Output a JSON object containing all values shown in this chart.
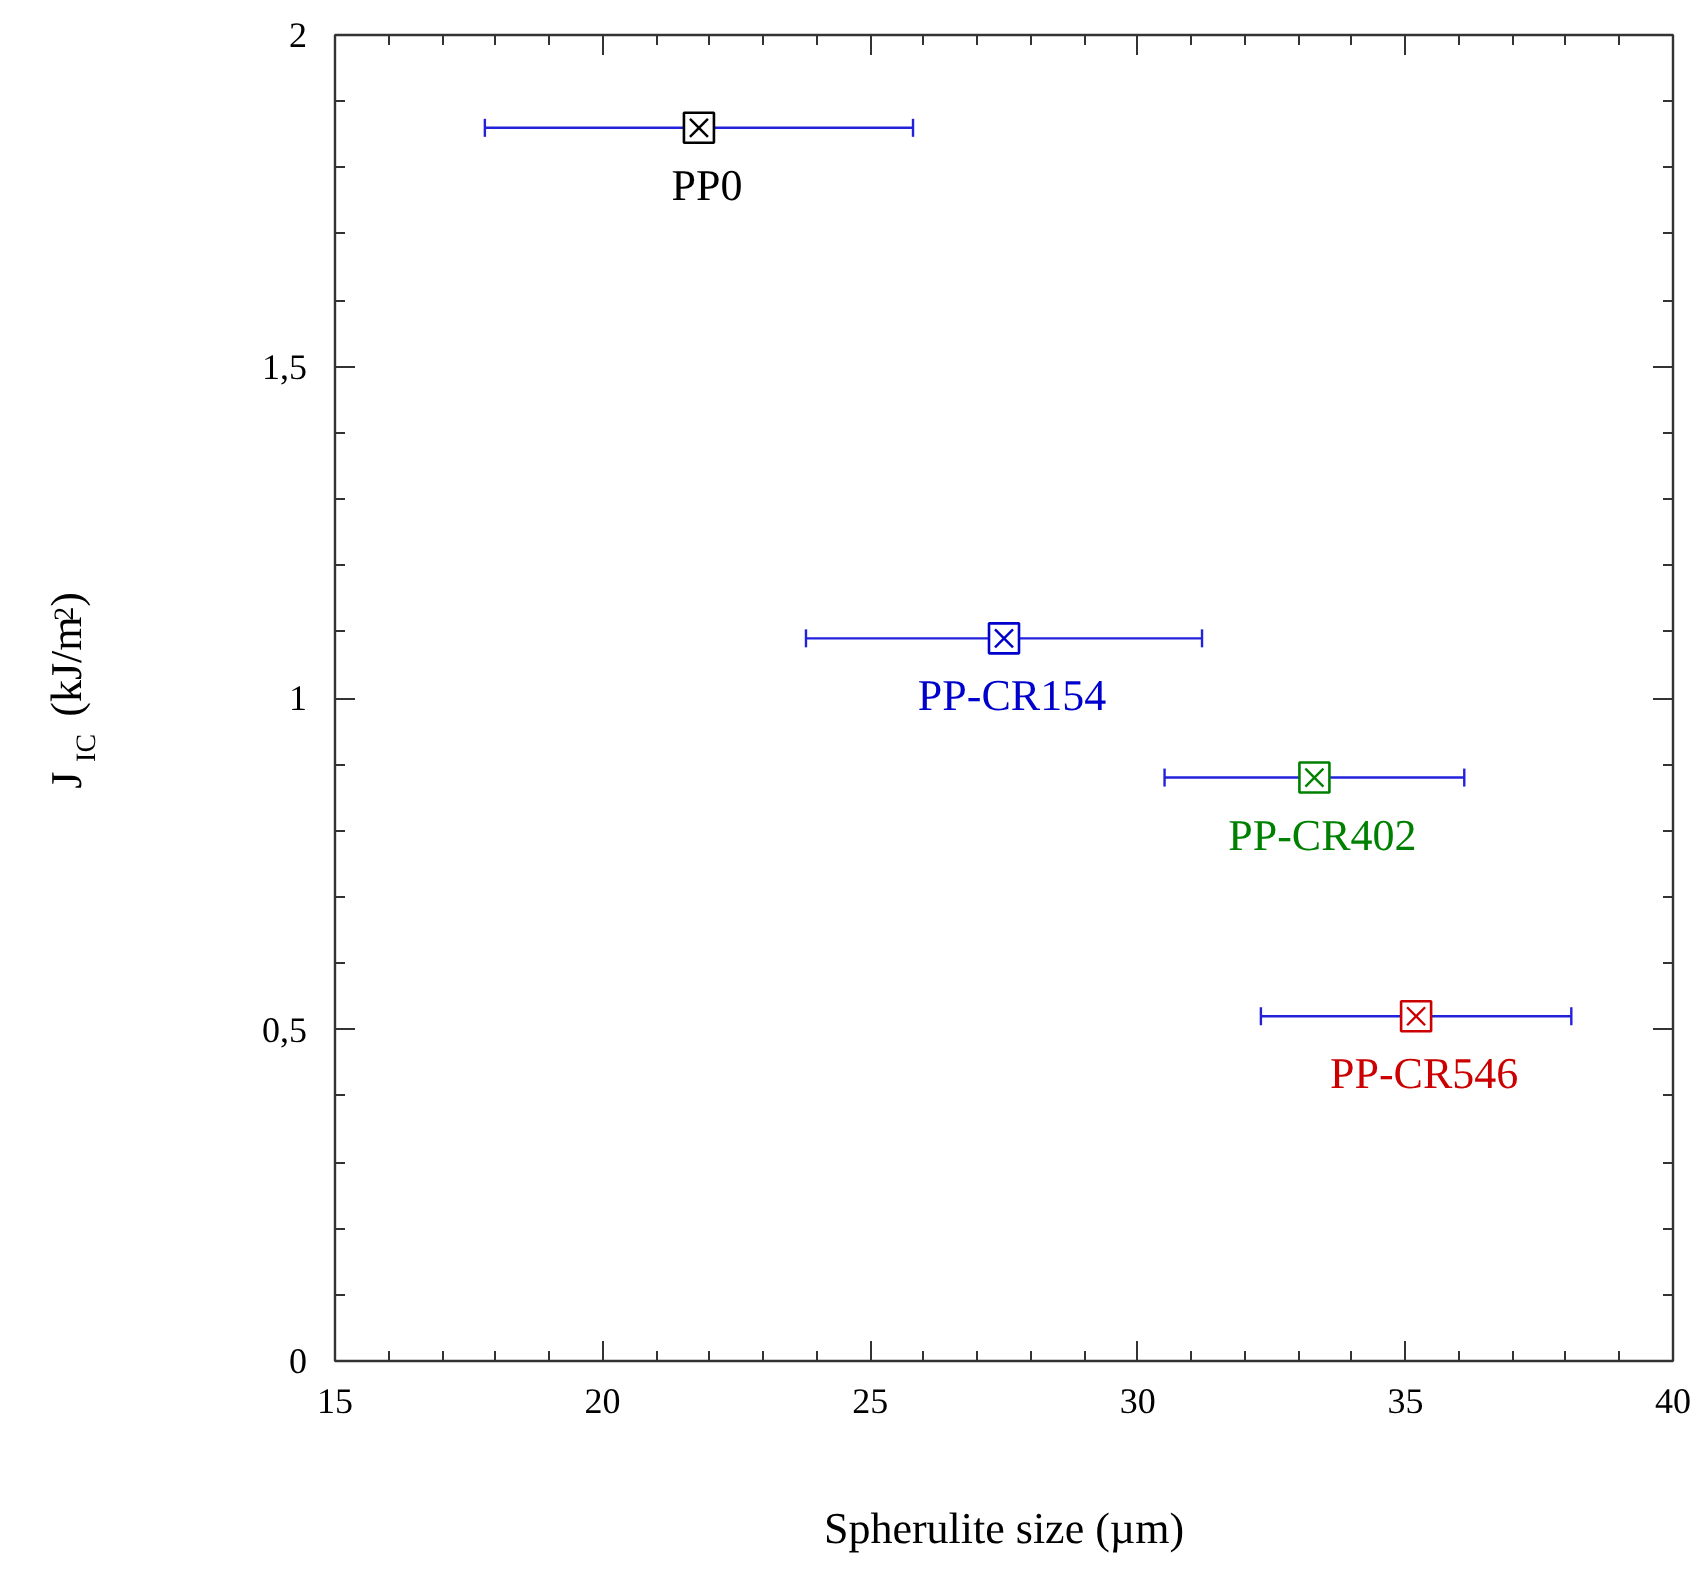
{
  "chart_data": {
    "type": "scatter",
    "xlabel": "Spherulite size (µm)",
    "ylabel": "J$_{IC}$ (kJ/m$^{2}$)",
    "xlim": [
      15,
      40
    ],
    "xticks": [
      15,
      20,
      25,
      30,
      35,
      40
    ],
    "ylim": [
      0,
      2
    ],
    "yticks": [
      0,
      {
        "value": 0.5,
        "label": "0,5"
      },
      1,
      {
        "value": 1.5,
        "label": "1,5"
      },
      2
    ],
    "grid": false,
    "legend": false,
    "marker": "square",
    "series": [
      {
        "name": "PP0",
        "color": "#000000",
        "x": [
          21.8
        ],
        "values": [
          1.86
        ],
        "xerrors": [
          [
            17.8,
            25.8
          ]
        ]
      },
      {
        "name": "PP-CR154",
        "color": "#0000cc",
        "x": [
          27.5
        ],
        "values": [
          1.09
        ],
        "xerrors": [
          [
            23.8,
            31.2
          ]
        ]
      },
      {
        "name": "PP-CR402",
        "color": "#008000",
        "x": [
          33.3
        ],
        "values": [
          0.88
        ],
        "xerrors": [
          [
            30.5,
            36.1
          ]
        ]
      },
      {
        "name": "PP-CR546",
        "color": "#cc0000",
        "x": [
          35.2
        ],
        "values": [
          0.52
        ],
        "xerrors": [
          [
            32.3,
            38.1
          ]
        ]
      }
    ]
  }
}
